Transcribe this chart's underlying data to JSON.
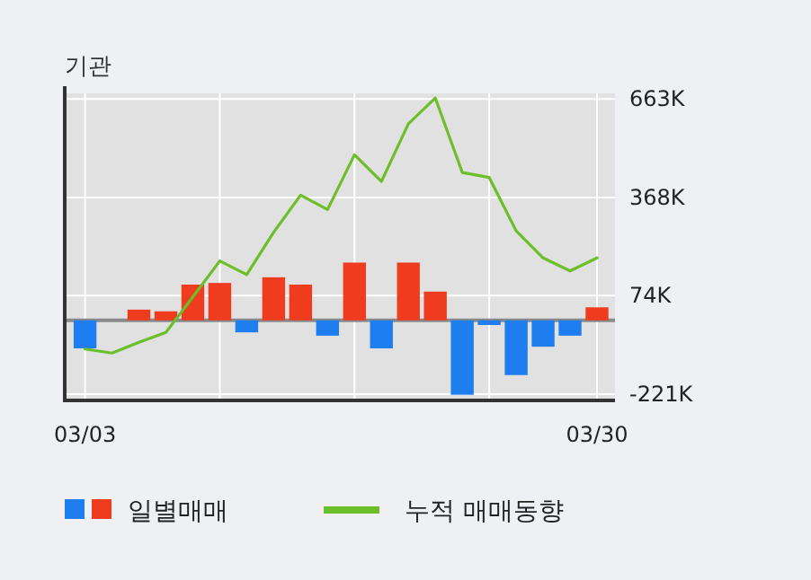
{
  "chart_data": {
    "type": "bar",
    "title": "기관",
    "categories": [
      "03/03",
      null,
      null,
      null,
      null,
      null,
      null,
      null,
      null,
      null,
      null,
      null,
      null,
      null,
      null,
      null,
      null,
      null,
      null,
      "03/30"
    ],
    "series": [
      {
        "name": "일별매매",
        "colors": [
          "#1e7ef0",
          "#1e7ef0",
          "#f03c1e",
          "#f03c1e",
          "#f03c1e",
          "#f03c1e",
          "#1e7ef0",
          "#f03c1e",
          "#f03c1e",
          "#1e7ef0",
          "#f03c1e",
          "#1e7ef0",
          "#f03c1e",
          "#f03c1e",
          "#1e7ef0",
          "#1e7ef0",
          "#1e7ef0",
          "#1e7ef0",
          "#1e7ef0",
          "#f03c1e"
        ],
        "values": [
          -84,
          0,
          32,
          27,
          107,
          112,
          -36,
          129,
          107,
          -46,
          173,
          -84,
          173,
          86,
          -223,
          -14,
          -164,
          -79,
          -46,
          39
        ]
      },
      {
        "name": "누적 매매동향",
        "type": "line",
        "color": "#6cbf2a",
        "values": [
          -86,
          -98,
          -66,
          -36,
          70,
          178,
          137,
          264,
          375,
          332,
          496,
          416,
          589,
          666,
          443,
          428,
          268,
          187,
          148,
          187
        ]
      }
    ],
    "ylim": [
      -240,
      680
    ],
    "yticks": [
      {
        "value": 663,
        "label": "663K"
      },
      {
        "value": 368,
        "label": "368K"
      },
      {
        "value": 74,
        "label": "74K"
      },
      {
        "value": -221,
        "label": "-221K"
      }
    ],
    "grid": true,
    "legend": "bottom"
  }
}
